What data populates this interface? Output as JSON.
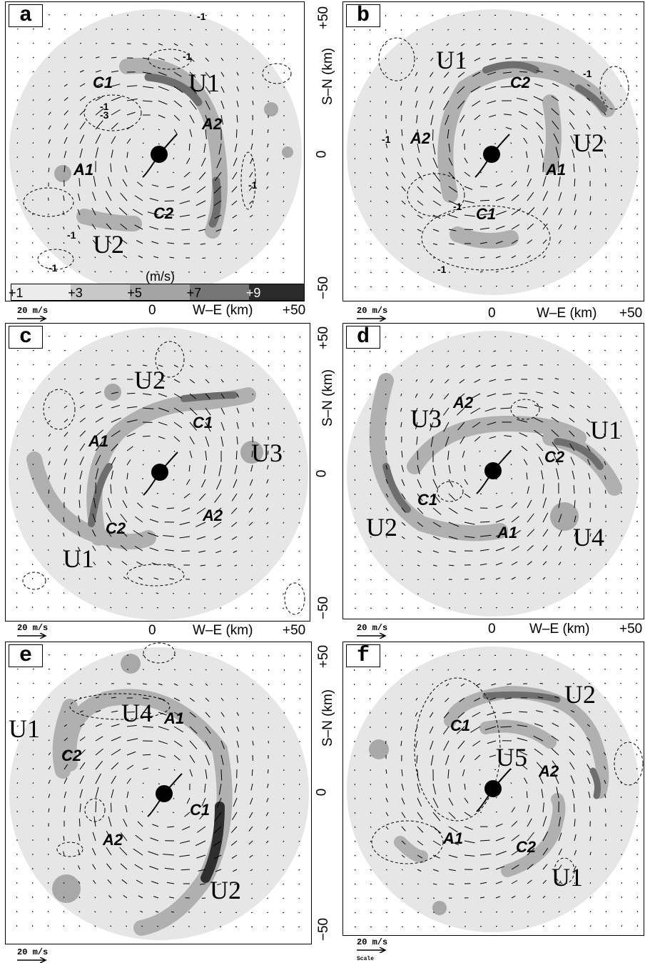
{
  "panels": [
    {
      "id": "a",
      "label": "a",
      "positive": [
        "A1",
        "A2"
      ],
      "cyclonic": [
        "C1",
        "C2"
      ],
      "updrafts": [
        "U1",
        "U2"
      ],
      "contours": [
        "-1",
        "-1",
        "-1",
        "-3",
        "-1",
        "-1",
        "-1",
        "-1"
      ]
    },
    {
      "id": "b",
      "label": "b",
      "positive": [
        "A1",
        "A2"
      ],
      "cyclonic": [
        "C1",
        "C2"
      ],
      "updrafts": [
        "U1",
        "U2"
      ],
      "contours": [
        "-1",
        "-1",
        "-1",
        "-1"
      ]
    },
    {
      "id": "c",
      "label": "c",
      "positive": [
        "A1",
        "A2"
      ],
      "cyclonic": [
        "C1",
        "C2"
      ],
      "updrafts": [
        "U1",
        "U2",
        "U3"
      ],
      "contours": []
    },
    {
      "id": "d",
      "label": "d",
      "positive": [
        "A1",
        "A2"
      ],
      "cyclonic": [
        "C1",
        "C2"
      ],
      "updrafts": [
        "U1",
        "U2",
        "U3",
        "U4"
      ],
      "contours": []
    },
    {
      "id": "e",
      "label": "e",
      "positive": [
        "A1",
        "A2"
      ],
      "cyclonic": [
        "C1",
        "C2"
      ],
      "updrafts": [
        "U1",
        "U2",
        "U4"
      ],
      "contours": []
    },
    {
      "id": "f",
      "label": "f",
      "positive": [
        "A1",
        "A2"
      ],
      "cyclonic": [
        "C1",
        "C2"
      ],
      "updrafts": [
        "U1",
        "U2",
        "U5"
      ],
      "contours": []
    }
  ],
  "axes": {
    "x_label": "W–E (km)",
    "y_label": "S–N (km)",
    "x_ticks": [
      "0",
      "+50"
    ],
    "y_ticks": [
      "+50",
      "0",
      "−50"
    ]
  },
  "colorbar": {
    "unit": "(m/s)",
    "levels": [
      "+1",
      "+3",
      "+5",
      "+7",
      "+9"
    ],
    "colors": [
      "#ececec",
      "#c8c8c8",
      "#a4a4a4",
      "#767676",
      "#2a2a2a"
    ]
  },
  "scale": {
    "label": "20 m/s",
    "sub": "Scale"
  }
}
